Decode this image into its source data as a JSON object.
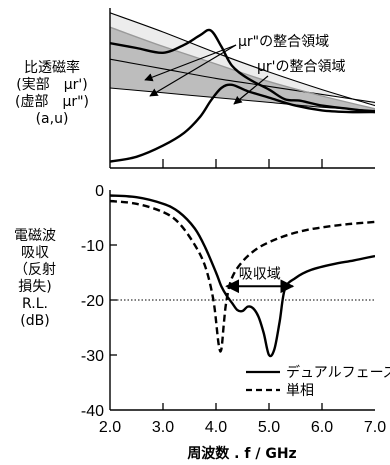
{
  "chart_data": [
    {
      "type": "line",
      "ylabel_lines": [
        "比透磁率",
        "(実部　μr')",
        "(虚部　μr\")",
        "(a,u)"
      ],
      "annotations": {
        "imag_region": "μr\"の整合領域",
        "real_region": "μr'の整合領域"
      },
      "x_range": [
        2.0,
        7.0
      ],
      "series": [
        {
          "x": [
            2.0,
            2.5,
            3.0,
            3.4,
            3.7,
            3.9,
            4.1,
            4.3,
            4.6,
            5.0,
            5.3,
            5.6,
            6.0,
            6.5,
            7.0
          ],
          "y": [
            0.78,
            0.75,
            0.72,
            0.77,
            0.83,
            0.86,
            0.76,
            0.64,
            0.56,
            0.49,
            0.43,
            0.42,
            0.39,
            0.37,
            0.35
          ]
        },
        {
          "x": [
            2.0,
            2.5,
            3.0,
            3.4,
            3.7,
            3.9,
            4.1,
            4.3,
            4.6,
            5.0,
            5.5,
            6.0,
            6.5,
            7.0
          ],
          "y": [
            0.04,
            0.07,
            0.14,
            0.22,
            0.32,
            0.42,
            0.5,
            0.52,
            0.48,
            0.44,
            0.39,
            0.36,
            0.35,
            0.35
          ]
        }
      ],
      "reference_curves": [
        {
          "x": [
            2.0,
            3.0,
            4.0,
            5.0,
            6.0,
            7.0
          ],
          "y": [
            0.97,
            0.85,
            0.72,
            0.6,
            0.49,
            0.39
          ]
        },
        {
          "x": [
            2.0,
            3.0,
            4.0,
            5.0,
            6.0,
            7.0
          ],
          "y": [
            0.68,
            0.62,
            0.56,
            0.51,
            0.46,
            0.41
          ]
        },
        {
          "x": [
            2.0,
            3.0,
            4.0,
            5.0,
            6.0,
            7.0
          ],
          "y": [
            0.5,
            0.47,
            0.44,
            0.41,
            0.38,
            0.36
          ]
        },
        {
          "x": [
            2.0,
            3.0,
            4.0,
            5.0,
            6.0,
            7.0
          ],
          "y": [
            0.88,
            0.76,
            0.65,
            0.54,
            0.45,
            0.37
          ]
        }
      ]
    },
    {
      "type": "line",
      "ylabel_lines": [
        "電磁波",
        "吸収",
        "（反射",
        "損失)",
        "R.L.",
        "(dB)"
      ],
      "xlabel": "周波数 . f / GHz",
      "x_ticks": [
        "2.0",
        "3.0",
        "4.0",
        "5.0",
        "6.0",
        "7.0"
      ],
      "y_ticks": [
        "0",
        "-10",
        "-20",
        "-30",
        "-40"
      ],
      "xlim": [
        2.0,
        7.0
      ],
      "ylim": [
        -40,
        0
      ],
      "reference_line": {
        "y": -20,
        "style": "dotted"
      },
      "annotation": {
        "text": "吸収域",
        "x_from": 4.2,
        "x_to": 5.45,
        "y": -17.5
      },
      "series": [
        {
          "name": "デュアルフェーズ",
          "style": "solid",
          "x": [
            2.0,
            2.5,
            3.0,
            3.3,
            3.6,
            3.8,
            4.0,
            4.1,
            4.2,
            4.3,
            4.4,
            4.5,
            4.6,
            4.7,
            4.8,
            4.9,
            5.0,
            5.1,
            5.2,
            5.3,
            5.5,
            5.8,
            6.2,
            6.6,
            7.0
          ],
          "y": [
            -1.0,
            -1.3,
            -2.5,
            -4.0,
            -7.0,
            -10.5,
            -15.0,
            -17.5,
            -19.2,
            -20.5,
            -21.8,
            -22.0,
            -21.2,
            -21.5,
            -23.0,
            -26.0,
            -30.0,
            -29.0,
            -24.0,
            -18.0,
            -16.0,
            -14.5,
            -13.5,
            -12.8,
            -12.0
          ]
        },
        {
          "name": "単相",
          "style": "dashed",
          "x": [
            2.0,
            2.5,
            3.0,
            3.3,
            3.6,
            3.8,
            3.95,
            4.05,
            4.1,
            4.15,
            4.2,
            4.3,
            4.5,
            4.8,
            5.2,
            5.6,
            6.0,
            6.5,
            7.0
          ],
          "y": [
            -2.0,
            -2.5,
            -4.0,
            -6.0,
            -10.0,
            -14.0,
            -20.0,
            -28.0,
            -29.0,
            -24.0,
            -20.0,
            -16.0,
            -13.0,
            -10.5,
            -8.7,
            -7.5,
            -6.8,
            -6.2,
            -5.8
          ]
        }
      ]
    }
  ]
}
